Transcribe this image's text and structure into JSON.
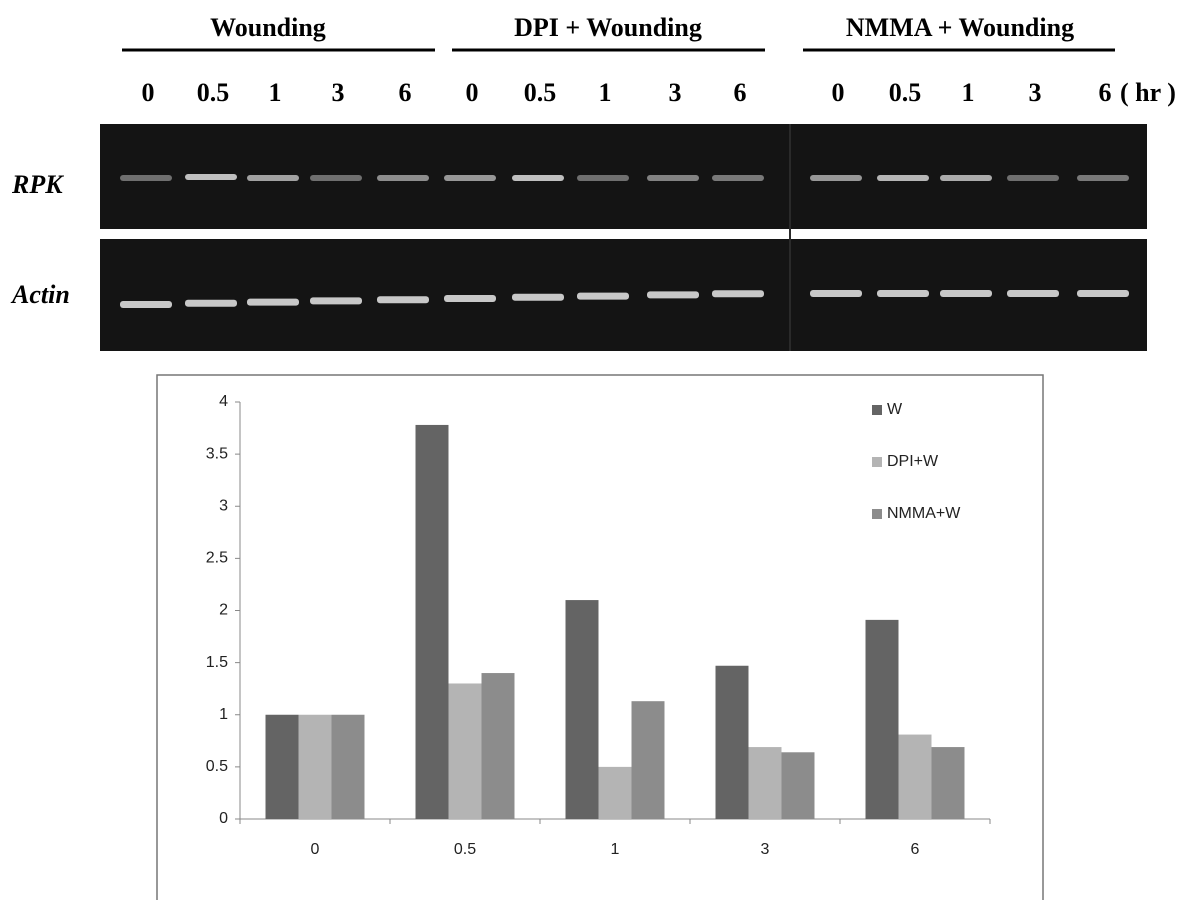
{
  "gel": {
    "groups": [
      "Wounding",
      "DPI + Wounding",
      "NMMA + Wounding"
    ],
    "lanes": [
      "0",
      "0.5",
      "1",
      "3",
      "6",
      "0",
      "0.5",
      "1",
      "3",
      "6",
      "0",
      "0.5",
      "1",
      "3",
      "6"
    ],
    "unit": "( hr )",
    "rows": [
      "RPK",
      "Actin"
    ]
  },
  "chart_data": {
    "type": "bar",
    "categories": [
      "0",
      "0.5",
      "1",
      "3",
      "6"
    ],
    "series": [
      {
        "name": "W",
        "color": "#646464",
        "values": [
          1,
          3.78,
          2.1,
          1.47,
          1.91
        ]
      },
      {
        "name": "DPI+W",
        "color": "#b4b4b4",
        "values": [
          1,
          1.3,
          0.5,
          0.69,
          0.81
        ]
      },
      {
        "name": "NMMA+W",
        "color": "#8c8c8c",
        "values": [
          1,
          1.4,
          1.13,
          0.64,
          0.69
        ]
      }
    ],
    "ylim": [
      0,
      4
    ],
    "yticks": [
      0,
      0.5,
      1,
      1.5,
      2,
      2.5,
      3,
      3.5,
      4
    ],
    "grid": false,
    "legend": "top-right"
  }
}
